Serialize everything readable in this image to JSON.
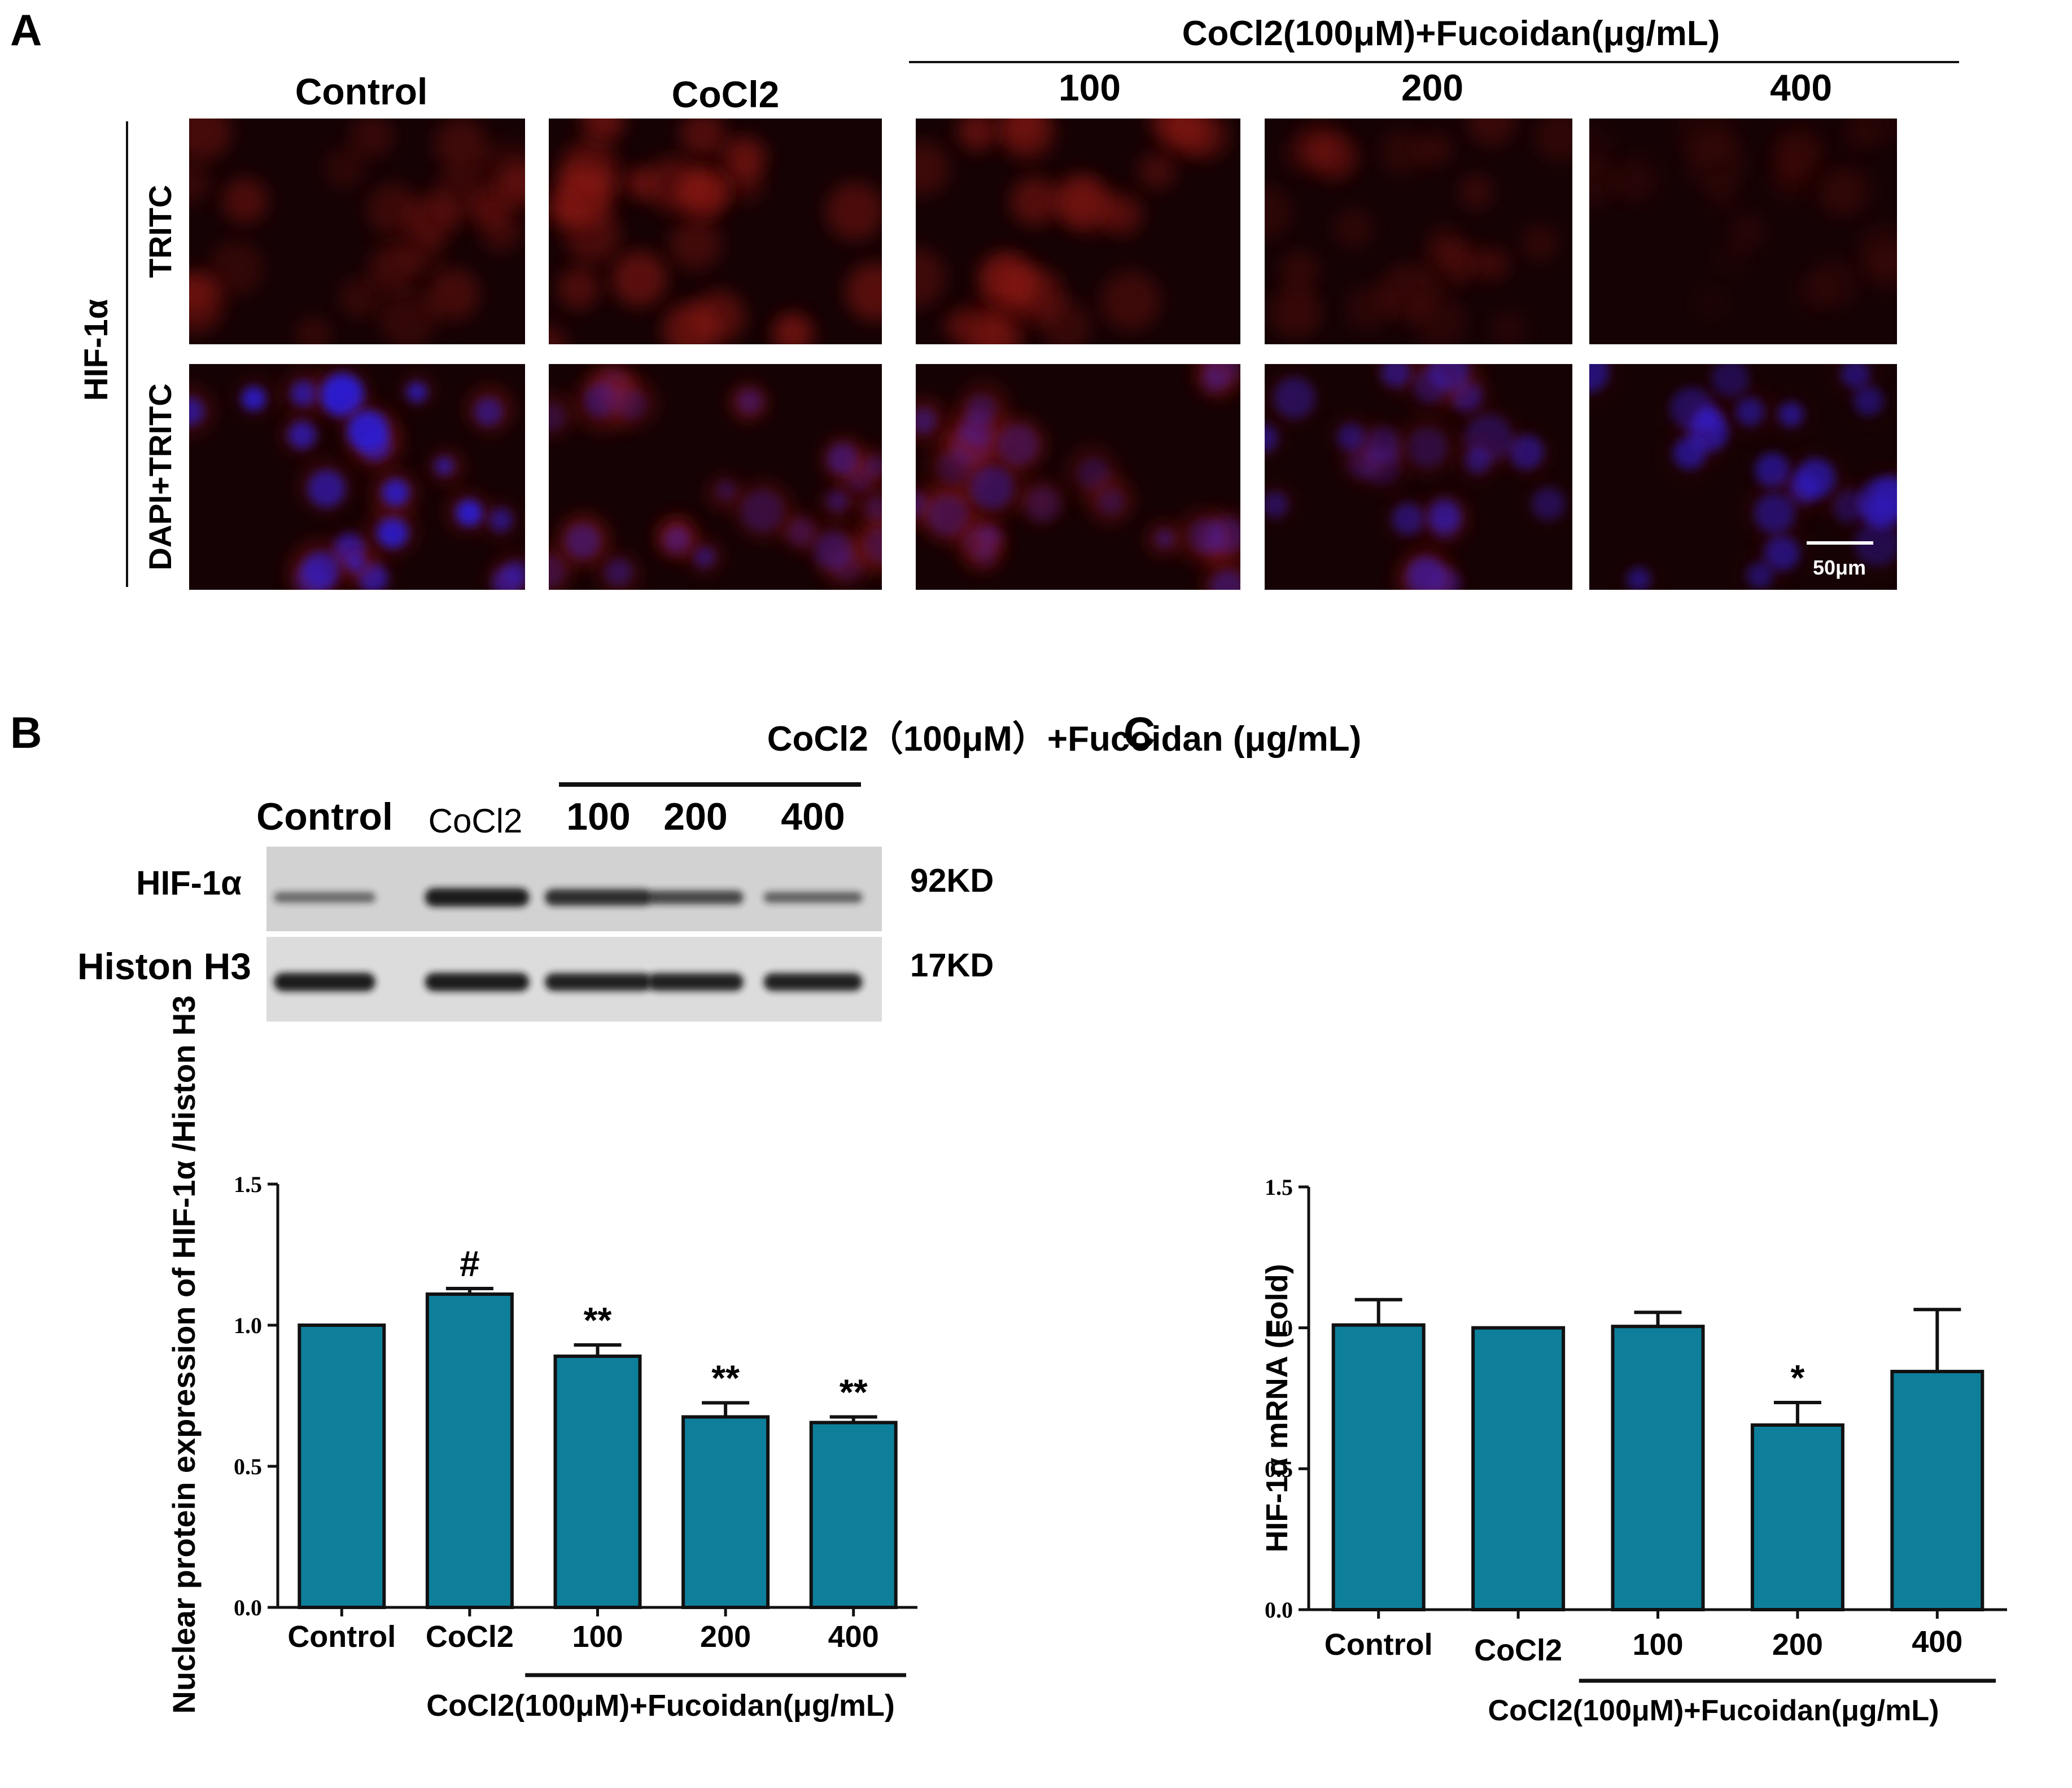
{
  "colors": {
    "bar_fill": "#0e7f9a",
    "axis": "#111111",
    "micrograph_bg": "#150204",
    "dapi": "#2a1bd8",
    "tritc": "#a31e12"
  },
  "panel_labels": [
    "A",
    "B",
    "C"
  ],
  "panel_a": {
    "treatment_header": "CoCl2(100μM)+Fucoidan(μg/mL)",
    "column_labels": [
      "Control",
      "CoCl2",
      "100",
      "200",
      "400"
    ],
    "group_label": "HIF-1α",
    "row_labels": [
      "TRITC",
      "DAPI+TRITC"
    ],
    "scale_bar": "50μm"
  },
  "panel_b_blot": {
    "treatment_header": "CoCl2（100μM）+Fucoidan (μg/mL)",
    "lane_labels": [
      "Control",
      "CoCl2",
      "100",
      "200",
      "400"
    ],
    "rows": [
      {
        "label": "HIF-1α",
        "size": "92KD",
        "intensity": [
          0.35,
          0.95,
          0.8,
          0.6,
          0.4
        ]
      },
      {
        "label": "Histon H3",
        "size": "17KD",
        "intensity": [
          0.95,
          0.95,
          0.9,
          0.9,
          0.9
        ]
      }
    ]
  },
  "chart_data": [
    {
      "type": "bar",
      "categories": [
        "Control",
        "CoCl2",
        "100",
        "200",
        "400"
      ],
      "values": [
        1.0,
        1.11,
        0.89,
        0.675,
        0.655
      ],
      "errors": [
        0.0,
        0.02,
        0.04,
        0.05,
        0.02
      ],
      "annotations": [
        "",
        "#",
        "**",
        "**",
        "**"
      ],
      "ylabel": "Nuclear protein expression of HIF-1α /Histon H3",
      "xlabel": "CoCl2(100μM)+Fucoidan(μg/mL)",
      "ylim": [
        0.0,
        1.5
      ],
      "yticks": [
        "0.0",
        "0.5",
        "1.0",
        "1.5"
      ],
      "grid": false
    },
    {
      "type": "bar",
      "categories": [
        "Control",
        "CoCl2",
        "100",
        "200",
        "400"
      ],
      "values": [
        1.01,
        1.0,
        1.005,
        0.655,
        0.845
      ],
      "errors": [
        0.09,
        0.0,
        0.05,
        0.08,
        0.22
      ],
      "annotations": [
        "",
        "",
        "",
        "*",
        ""
      ],
      "ylabel": "HIF-1α mRNA (Fold)",
      "xlabel": "CoCl2(100μM)+Fucoidan(μg/mL)",
      "ylim": [
        0.0,
        1.5
      ],
      "yticks": [
        "0.0",
        "0.5",
        "1.0",
        "1.5"
      ],
      "grid": false
    }
  ]
}
